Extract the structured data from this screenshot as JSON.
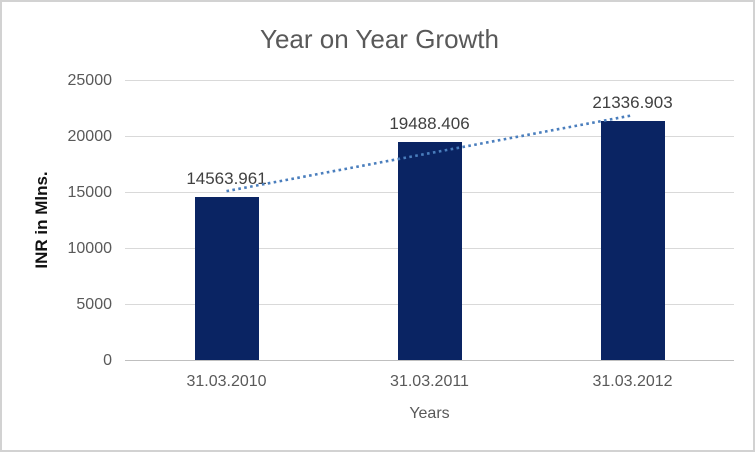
{
  "chart_data": {
    "type": "bar",
    "title": "Year on Year Growth",
    "xlabel": "Years",
    "ylabel": "INR in Mlns.",
    "categories": [
      "31.03.2010",
      "31.03.2011",
      "31.03.2012"
    ],
    "series": [
      {
        "name": "INR in Mlns.",
        "values": [
          14563.961,
          19488.406,
          21336.903
        ]
      }
    ],
    "data_labels": [
      "14563.961",
      "19488.406",
      "21336.903"
    ],
    "ylim": [
      0,
      25000
    ],
    "yticks": [
      0,
      5000,
      10000,
      15000,
      20000,
      25000
    ],
    "ytick_labels": [
      "0",
      "5000",
      "10000",
      "15000",
      "20000",
      "25000"
    ],
    "grid": true,
    "legend_position": "none",
    "trendline": {
      "type": "linear",
      "style": "dotted"
    },
    "colors": {
      "bar": "#0a2463",
      "trendline": "#4a7ebd",
      "title_text": "#595959",
      "tick_text": "#595959",
      "data_label_text": "#404040",
      "gridline": "#d9d9d9",
      "axis_line": "#bfbfbf",
      "background": "#ffffff",
      "border": "#d2d2d2"
    }
  }
}
